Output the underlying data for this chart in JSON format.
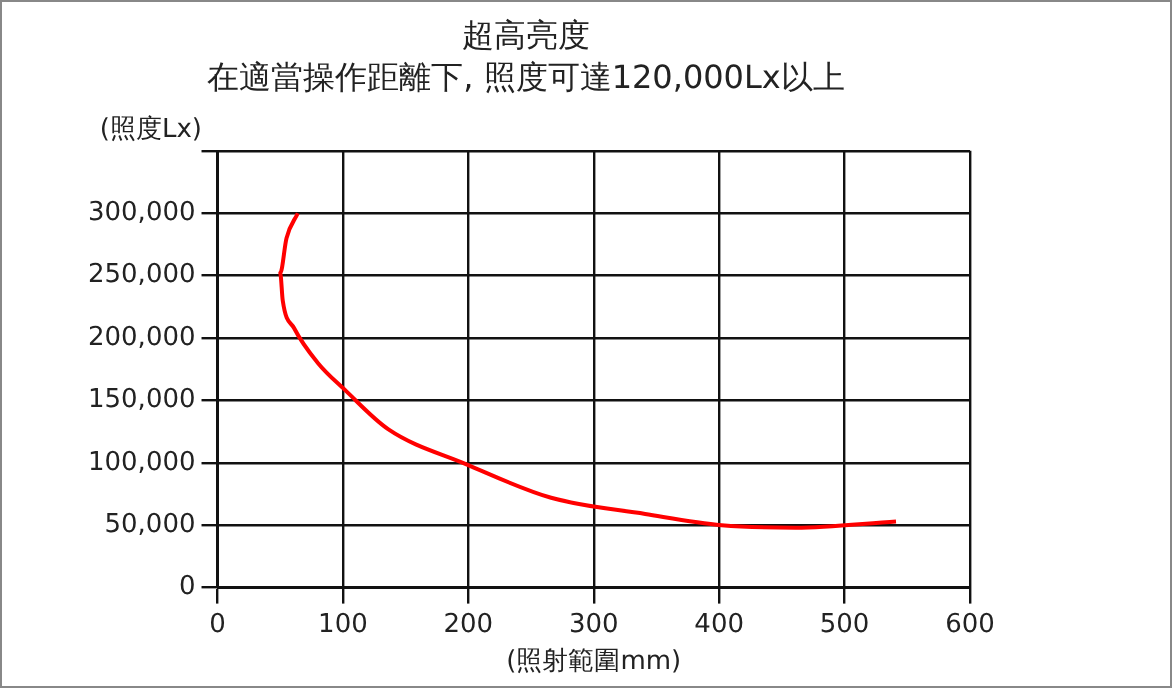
{
  "chart_data": {
    "type": "line",
    "title": "超高亮度",
    "subtitle": "在適當操作距離下, 照度可達120,000Lx以上",
    "ylabel": "(照度Lx)",
    "xlabel": "(照射範圍mm)",
    "series": [
      {
        "color": "#ff0000",
        "x": [
          64,
          55,
          50,
          52,
          61,
          80,
          102,
          136,
          198,
          266,
          341,
          402,
          461,
          541
        ],
        "values": [
          300000,
          280000,
          252000,
          230000,
          208000,
          180000,
          158000,
          127000,
          99000,
          72000,
          59000,
          50000,
          48000,
          53000
        ]
      }
    ],
    "xlim": [
      0,
      600
    ],
    "xticks": [
      0,
      100,
      200,
      300,
      400,
      500,
      600
    ],
    "ylim": [
      0,
      350000
    ],
    "yticks": [
      0,
      {
        "value": 50000,
        "label": "50,000"
      },
      {
        "value": 100000,
        "label": "100,000"
      },
      {
        "value": 150000,
        "label": "150,000"
      },
      {
        "value": 200000,
        "label": "200,000"
      },
      {
        "value": 250000,
        "label": "250,000"
      },
      {
        "value": 300000,
        "label": "300,000"
      },
      {
        "value": 350000,
        "label": null
      }
    ],
    "grid": true,
    "marker": "none",
    "line_style": "solid"
  }
}
